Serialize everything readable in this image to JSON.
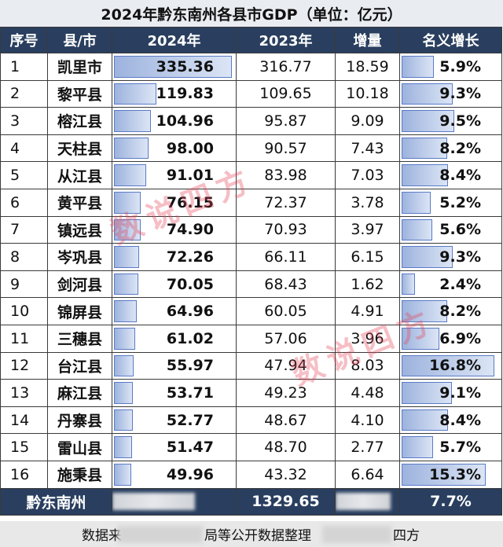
{
  "title": "2024年黔东南州各县市GDP（单位：亿元）",
  "headers": [
    "序号",
    "县/市",
    "2024年",
    "2023年",
    "增量",
    "名义增长"
  ],
  "chart_data": {
    "type": "table",
    "title": "2024年黔东南州各县市GDP（单位：亿元）",
    "columns": [
      "序号",
      "县/市",
      "2024年",
      "2023年",
      "增量",
      "名义增长"
    ],
    "rows": [
      {
        "seq": "1",
        "county": "凯里市",
        "v2024": "335.36",
        "v2023": "316.77",
        "increase": "18.59",
        "growth": "5.9%"
      },
      {
        "seq": "2",
        "county": "黎平县",
        "v2024": "119.83",
        "v2023": "109.65",
        "increase": "10.18",
        "growth": "9.3%"
      },
      {
        "seq": "3",
        "county": "榕江县",
        "v2024": "104.96",
        "v2023": "95.87",
        "increase": "9.09",
        "growth": "9.5%"
      },
      {
        "seq": "4",
        "county": "天柱县",
        "v2024": "98.00",
        "v2023": "90.57",
        "increase": "7.43",
        "growth": "8.2%"
      },
      {
        "seq": "5",
        "county": "从江县",
        "v2024": "91.01",
        "v2023": "83.98",
        "increase": "7.03",
        "growth": "8.4%"
      },
      {
        "seq": "6",
        "county": "黄平县",
        "v2024": "76.15",
        "v2023": "72.37",
        "increase": "3.78",
        "growth": "5.2%"
      },
      {
        "seq": "7",
        "county": "镇远县",
        "v2024": "74.90",
        "v2023": "70.93",
        "increase": "3.97",
        "growth": "5.6%"
      },
      {
        "seq": "8",
        "county": "岑巩县",
        "v2024": "72.26",
        "v2023": "66.11",
        "increase": "6.15",
        "growth": "9.3%"
      },
      {
        "seq": "9",
        "county": "剑河县",
        "v2024": "70.05",
        "v2023": "68.43",
        "increase": "1.62",
        "growth": "2.4%"
      },
      {
        "seq": "10",
        "county": "锦屏县",
        "v2024": "64.96",
        "v2023": "60.05",
        "increase": "4.91",
        "growth": "8.2%"
      },
      {
        "seq": "11",
        "county": "三穗县",
        "v2024": "61.02",
        "v2023": "57.06",
        "increase": "3.96",
        "growth": "6.9%"
      },
      {
        "seq": "12",
        "county": "台江县",
        "v2024": "55.97",
        "v2023": "47.94",
        "increase": "8.03",
        "growth": "16.8%"
      },
      {
        "seq": "13",
        "county": "麻江县",
        "v2024": "53.71",
        "v2023": "49.23",
        "increase": "4.48",
        "growth": "9.1%"
      },
      {
        "seq": "14",
        "county": "丹寨县",
        "v2024": "52.77",
        "v2023": "48.67",
        "increase": "4.10",
        "growth": "8.4%"
      },
      {
        "seq": "15",
        "county": "雷山县",
        "v2024": "51.47",
        "v2023": "48.70",
        "increase": "2.77",
        "growth": "5.7%"
      },
      {
        "seq": "16",
        "county": "施秉县",
        "v2024": "49.96",
        "v2023": "43.32",
        "increase": "6.64",
        "growth": "15.3%"
      }
    ],
    "v2024_values": [
      335.36,
      119.83,
      104.96,
      98.0,
      91.01,
      76.15,
      74.9,
      72.26,
      70.05,
      64.96,
      61.02,
      55.97,
      53.71,
      52.77,
      51.47,
      49.96
    ],
    "growth_values": [
      5.9,
      9.3,
      9.5,
      8.2,
      8.4,
      5.2,
      5.6,
      9.3,
      2.4,
      8.2,
      6.9,
      16.8,
      9.1,
      8.4,
      5.7,
      15.3
    ],
    "v2024_bar_max": 335.36,
    "growth_bar_max": 16.8,
    "total": {
      "label": "黔东南州",
      "v2023": "1329.65",
      "growth": "7.7%"
    }
  },
  "footer": {
    "left": "数据来",
    "middle": "局等公开数据整理",
    "right": "四方"
  },
  "watermark": "数说四方",
  "colors": {
    "header_bg": "#2a3f5f",
    "bar_fill": "#9db3de",
    "bar_border": "#5a7bc6",
    "watermark": "#e6465a"
  }
}
